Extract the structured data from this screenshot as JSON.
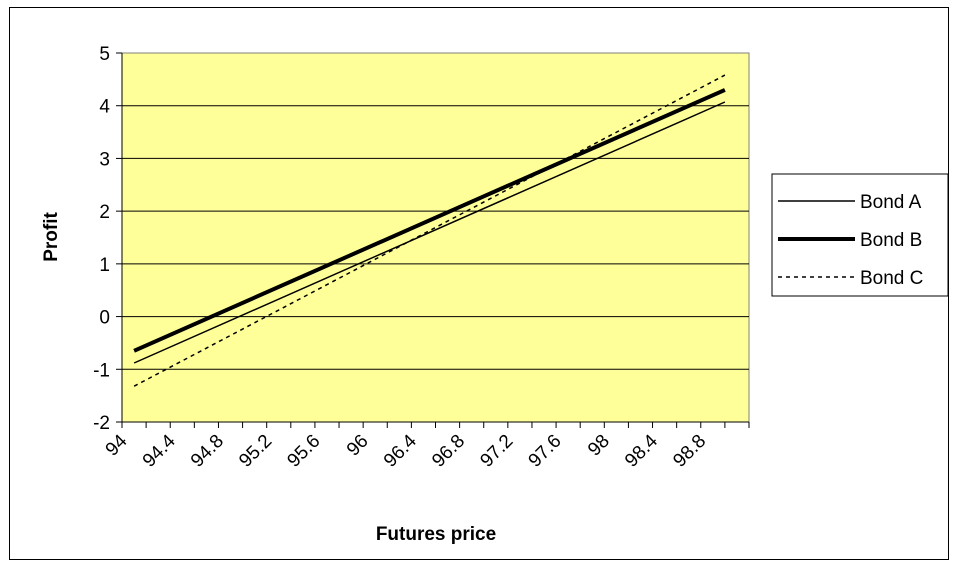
{
  "chart_data": {
    "type": "line",
    "xlabel": "Futures price",
    "ylabel": "Profit",
    "x_ticks": [
      "94",
      "94.4",
      "94.8",
      "95.2",
      "95.6",
      "96",
      "96.4",
      "96.8",
      "97.2",
      "97.6",
      "98",
      "98.4",
      "98.8"
    ],
    "x_range": [
      94.0,
      99.2
    ],
    "ylim": [
      -2,
      5
    ],
    "y_ticks": [
      -2,
      -1,
      0,
      1,
      2,
      3,
      4,
      5
    ],
    "grid": "horizontal",
    "legend_position": "right",
    "plot_background": "#ffff99",
    "series": [
      {
        "name": "Bond A",
        "style": "thin-solid",
        "points": [
          [
            94.1,
            -0.88
          ],
          [
            99.0,
            4.07
          ]
        ]
      },
      {
        "name": "Bond B",
        "style": "thick-solid",
        "points": [
          [
            94.1,
            -0.65
          ],
          [
            99.0,
            4.3
          ]
        ]
      },
      {
        "name": "Bond C",
        "style": "dashed",
        "points": [
          [
            94.1,
            -1.32
          ],
          [
            99.0,
            4.58
          ]
        ]
      }
    ]
  }
}
